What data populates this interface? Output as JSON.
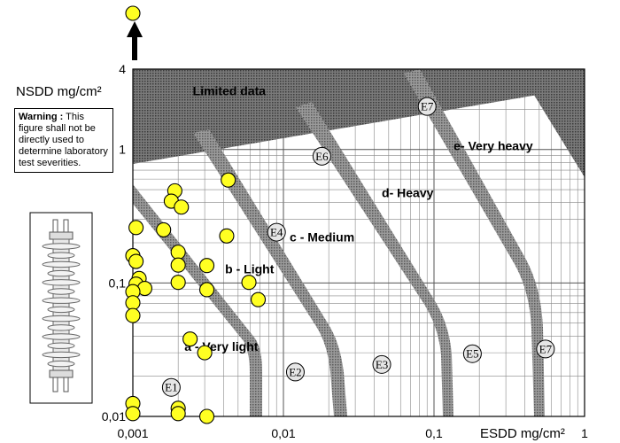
{
  "chart_data": {
    "type": "scatter",
    "x_axis": {
      "label": "ESDD mg/cm²",
      "scale": "log",
      "range": [
        0.001,
        1
      ],
      "ticks": [
        "0,001",
        "0,01",
        "0,1",
        "1"
      ]
    },
    "y_axis": {
      "label": "NSDD mg/cm²",
      "scale": "log",
      "range": [
        0.01,
        4
      ],
      "ticks": [
        "0,01",
        "0,1",
        "1",
        "4"
      ]
    },
    "grid": true,
    "regions": [
      {
        "label": "a - Very light",
        "x": 0.0022,
        "y": 0.031
      },
      {
        "label": "b - Light",
        "x": 0.0041,
        "y": 0.118
      },
      {
        "label": "c - Medium",
        "x": 0.011,
        "y": 0.205
      },
      {
        "label": "d- Heavy",
        "x": 0.045,
        "y": 0.44
      },
      {
        "label": "e- Very heavy",
        "x": 0.135,
        "y": 0.99
      },
      {
        "label": "Limited data",
        "x": 0.0025,
        "y": 2.55
      }
    ],
    "class_markers": [
      {
        "label": "E1",
        "x": 0.0018,
        "y": 0.0165
      },
      {
        "label": "E2",
        "x": 0.012,
        "y": 0.0215
      },
      {
        "label": "E3",
        "x": 0.045,
        "y": 0.0245
      },
      {
        "label": "E5",
        "x": 0.18,
        "y": 0.0295
      },
      {
        "label": "E7",
        "x": 0.55,
        "y": 0.032
      },
      {
        "label": "E4",
        "x": 0.009,
        "y": 0.24
      },
      {
        "label": "E6",
        "x": 0.018,
        "y": 0.89
      },
      {
        "label": "E7",
        "x": 0.09,
        "y": 2.1
      }
    ],
    "points": [
      {
        "x": 0.001,
        "y": 4.3,
        "off_scale": true
      },
      {
        "x": 0.00105,
        "y": 0.26
      },
      {
        "x": 0.001,
        "y": 0.16
      },
      {
        "x": 0.00105,
        "y": 0.145
      },
      {
        "x": 0.0011,
        "y": 0.108
      },
      {
        "x": 0.00105,
        "y": 0.098
      },
      {
        "x": 0.0012,
        "y": 0.091
      },
      {
        "x": 0.001,
        "y": 0.086
      },
      {
        "x": 0.001,
        "y": 0.071
      },
      {
        "x": 0.001,
        "y": 0.057
      },
      {
        "x": 0.001,
        "y": 0.0125
      },
      {
        "x": 0.001,
        "y": 0.0105
      },
      {
        "x": 0.0019,
        "y": 0.49
      },
      {
        "x": 0.0018,
        "y": 0.41
      },
      {
        "x": 0.0021,
        "y": 0.37
      },
      {
        "x": 0.0016,
        "y": 0.25
      },
      {
        "x": 0.002,
        "y": 0.17
      },
      {
        "x": 0.002,
        "y": 0.136
      },
      {
        "x": 0.002,
        "y": 0.101
      },
      {
        "x": 0.0043,
        "y": 0.59
      },
      {
        "x": 0.0042,
        "y": 0.225
      },
      {
        "x": 0.0031,
        "y": 0.135
      },
      {
        "x": 0.0031,
        "y": 0.089
      },
      {
        "x": 0.0024,
        "y": 0.038
      },
      {
        "x": 0.003,
        "y": 0.03
      },
      {
        "x": 0.0059,
        "y": 0.101
      },
      {
        "x": 0.0068,
        "y": 0.075
      },
      {
        "x": 0.002,
        "y": 0.0115
      },
      {
        "x": 0.002,
        "y": 0.0105
      },
      {
        "x": 0.0031,
        "y": 0.01
      }
    ],
    "point_color": "#ffff22"
  },
  "warning": {
    "title": "Warning :",
    "text": " This figure shall not be directly used to determine laboratory test severities."
  }
}
